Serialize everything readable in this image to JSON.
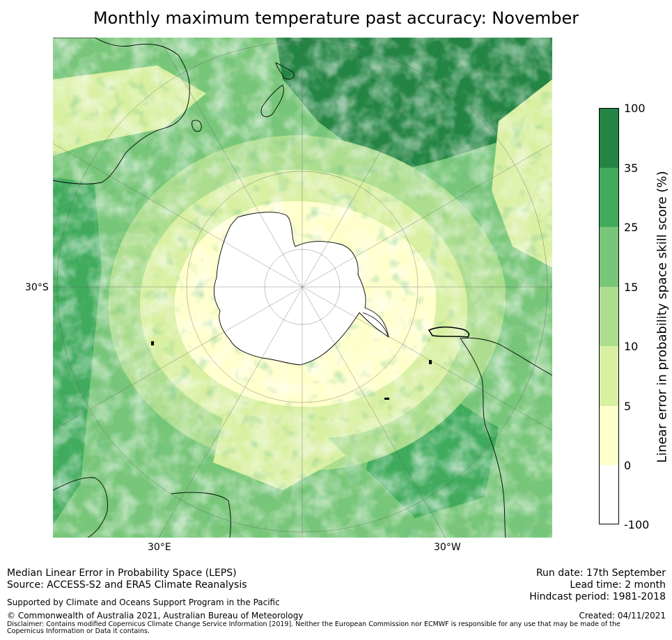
{
  "title": "Monthly maximum temperature past accuracy: November",
  "map": {
    "lat_label": "30°S",
    "lon_labels": [
      "30°E",
      "30°W"
    ],
    "colors": {
      "c100": "#238443",
      "c35": "#41ab5d",
      "c25": "#78c679",
      "c15": "#addd8e",
      "c10": "#d9f0a3",
      "c5": "#ffffcc",
      "c0": "#ffffff",
      "coast": "#000000"
    }
  },
  "colorbar": {
    "label": "Linear error in probability space skill score (%)",
    "ticks": [
      "100",
      "35",
      "25",
      "15",
      "10",
      "5",
      "0",
      "-100"
    ],
    "colors": [
      "#238443",
      "#41ab5d",
      "#78c679",
      "#addd8e",
      "#d9f0a3",
      "#ffffcc",
      "#ffffff"
    ]
  },
  "footer": {
    "left_line1": "Median Linear Error in Probability Space (LEPS)",
    "left_line2": "Source: ACCESS-S2 and ERA5 Climate Reanalysis",
    "supported": "Supported by Climate and Oceans Support Program in the Pacific",
    "copyright": "© Commonwealth of Australia 2021, Australian Bureau of Meteorology",
    "disclaimer": "Disclaimer: Contains modified Copernicus Climate Change Service Information [2019]. Neither the European Commission nor ECMWF is responsible for any use that may be made of the Copernicus Information or Data it contains.",
    "run_date": "Run date: 17th September",
    "lead_time": "Lead time: 2 month",
    "hindcast": "Hindcast period: 1981-2018",
    "created": "Created: 04/11/2021"
  }
}
